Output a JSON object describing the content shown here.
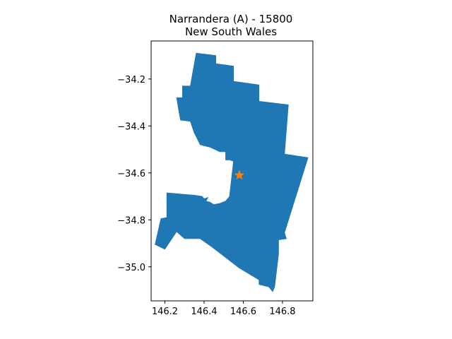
{
  "chart_data": {
    "type": "map",
    "title_line1": "Narrandera (A) - 15800",
    "title_line2": "New South Wales",
    "xlim": [
      146.13,
      146.955
    ],
    "ylim": [
      -35.145,
      -34.038
    ],
    "x_ticks": [
      146.2,
      146.4,
      146.6,
      146.8
    ],
    "x_tick_labels": [
      "146.2",
      "146.4",
      "146.6",
      "146.8"
    ],
    "y_ticks": [
      -34.2,
      -34.4,
      -34.6,
      -34.8,
      -35.0
    ],
    "y_tick_labels": [
      "−34.2",
      "−34.4",
      "−34.6",
      "−34.8",
      "−35.0"
    ],
    "region_color": "#1f77b4",
    "marker_color": "#ff7f0e",
    "marker": {
      "type": "star",
      "lon": 146.58,
      "lat": -34.61
    },
    "region_outline": [
      [
        146.36,
        -34.09
      ],
      [
        146.46,
        -34.1
      ],
      [
        146.46,
        -34.135
      ],
      [
        146.55,
        -34.145
      ],
      [
        146.55,
        -34.21
      ],
      [
        146.68,
        -34.225
      ],
      [
        146.68,
        -34.295
      ],
      [
        146.83,
        -34.31
      ],
      [
        146.81,
        -34.52
      ],
      [
        146.93,
        -34.535
      ],
      [
        146.81,
        -34.855
      ],
      [
        146.82,
        -34.88
      ],
      [
        146.78,
        -34.885
      ],
      [
        146.78,
        -34.945
      ],
      [
        146.76,
        -35.085
      ],
      [
        146.75,
        -35.105
      ],
      [
        146.73,
        -35.085
      ],
      [
        146.68,
        -35.075
      ],
      [
        146.68,
        -35.055
      ],
      [
        146.58,
        -35.005
      ],
      [
        146.44,
        -34.915
      ],
      [
        146.38,
        -34.88
      ],
      [
        146.3,
        -34.88
      ],
      [
        146.26,
        -34.85
      ],
      [
        146.2,
        -34.925
      ],
      [
        146.15,
        -34.905
      ],
      [
        146.18,
        -34.795
      ],
      [
        146.21,
        -34.79
      ],
      [
        146.21,
        -34.685
      ],
      [
        146.35,
        -34.695
      ],
      [
        146.39,
        -34.7
      ],
      [
        146.4,
        -34.71
      ],
      [
        146.42,
        -34.705
      ],
      [
        146.41,
        -34.72
      ],
      [
        146.43,
        -34.725
      ],
      [
        146.45,
        -34.735
      ],
      [
        146.48,
        -34.73
      ],
      [
        146.51,
        -34.72
      ],
      [
        146.53,
        -34.7
      ],
      [
        146.55,
        -34.55
      ],
      [
        146.53,
        -34.545
      ],
      [
        146.51,
        -34.545
      ],
      [
        146.51,
        -34.51
      ],
      [
        146.48,
        -34.51
      ],
      [
        146.43,
        -34.49
      ],
      [
        146.38,
        -34.48
      ],
      [
        146.36,
        -34.445
      ],
      [
        146.35,
        -34.43
      ],
      [
        146.33,
        -34.38
      ],
      [
        146.28,
        -34.375
      ],
      [
        146.27,
        -34.33
      ],
      [
        146.26,
        -34.28
      ],
      [
        146.29,
        -34.28
      ],
      [
        146.29,
        -34.23
      ],
      [
        146.33,
        -34.23
      ]
    ]
  }
}
